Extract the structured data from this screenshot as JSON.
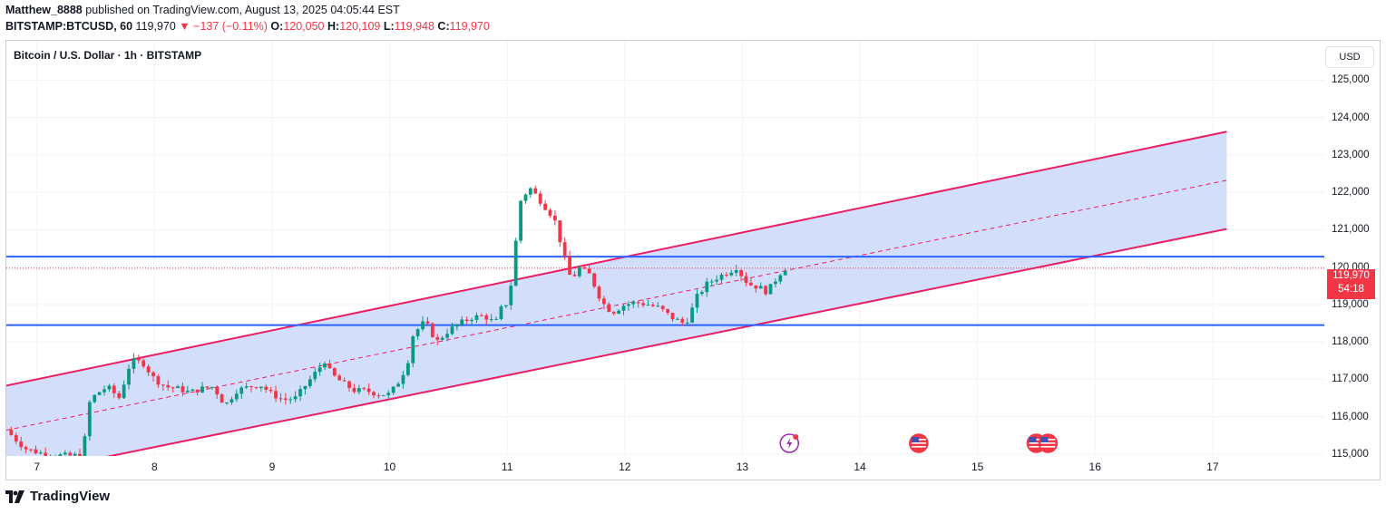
{
  "header": {
    "author": "Matthew_8888",
    "published_text": " published on TradingView.com, August 13, 2025 04:05:44 EST",
    "symbol_interval": "BITSTAMP:BTCUSD, 60",
    "last": "119,970",
    "change_arrow": "▼",
    "change": "−137 (−0.11%)",
    "o_label": "O:",
    "o_value": "120,050",
    "h_label": "H:",
    "h_value": "120,109",
    "l_label": "L:",
    "l_value": "119,948",
    "c_label": "C:",
    "c_value": "119,970"
  },
  "chart_header": {
    "title": "Bitcoin / U.S. Dollar · 1h · BITSTAMP"
  },
  "currency_button": "USD",
  "price_tag": {
    "price": "119,970",
    "countdown": "54:18"
  },
  "footer": {
    "brand": "TradingView"
  },
  "colors": {
    "up": "#089981",
    "down": "#f23645",
    "channel": "#e91e63",
    "channel_fill": "#d1dcfb",
    "hline": "#2962ff"
  },
  "events": [
    {
      "icon": "crypto-event-icon",
      "date": 13.4
    },
    {
      "icon": "us-flag-icon",
      "date": 14.5
    },
    {
      "icon": "us-flag-icon",
      "date": 15.5
    },
    {
      "icon": "us-flag-icon",
      "date": 15.6
    }
  ],
  "chart_data": {
    "type": "candlestick",
    "x_tick_labels": [
      "7",
      "8",
      "9",
      "10",
      "11",
      "12",
      "13",
      "14",
      "15",
      "16",
      "17"
    ],
    "y_tick_labels": [
      "115,000",
      "116,000",
      "117,000",
      "118,000",
      "119,000",
      "120,000",
      "121,000",
      "122,000",
      "123,000",
      "124,000",
      "125,000"
    ],
    "y_ticks": [
      115000,
      116000,
      117000,
      118000,
      119000,
      120000,
      121000,
      122000,
      123000,
      124000,
      125000
    ],
    "x_ticks": [
      7,
      8,
      9,
      10,
      11,
      12,
      13,
      14,
      15,
      16,
      17
    ],
    "xlim": [
      6.74,
      17.95
    ],
    "ylim": [
      114950,
      126050
    ],
    "grid": true,
    "last_price": 119970,
    "horizontal_lines": [
      120280,
      118450
    ],
    "channel": {
      "upper": [
        [
          6.74,
          116830
        ],
        [
          17.12,
          123620
        ]
      ],
      "middle": [
        [
          6.74,
          115640
        ],
        [
          17.12,
          122320
        ]
      ],
      "lower": [
        [
          7.55,
          114900
        ],
        [
          17.12,
          121020
        ]
      ]
    },
    "price_anchors": [
      [
        6.74,
        115650
      ],
      [
        6.8,
        115450
      ],
      [
        6.9,
        115150
      ],
      [
        7.0,
        115050
      ],
      [
        7.1,
        114980
      ],
      [
        7.3,
        114950
      ],
      [
        7.4,
        115000
      ],
      [
        7.42,
        116250
      ],
      [
        7.5,
        116600
      ],
      [
        7.6,
        116800
      ],
      [
        7.7,
        116500
      ],
      [
        7.8,
        117500
      ],
      [
        7.9,
        117450
      ],
      [
        8.0,
        117000
      ],
      [
        8.1,
        116800
      ],
      [
        8.2,
        116750
      ],
      [
        8.3,
        116650
      ],
      [
        8.4,
        116750
      ],
      [
        8.5,
        116800
      ],
      [
        8.6,
        116300
      ],
      [
        8.7,
        116700
      ],
      [
        8.8,
        116800
      ],
      [
        8.9,
        116850
      ],
      [
        9.0,
        116600
      ],
      [
        9.1,
        116450
      ],
      [
        9.2,
        116500
      ],
      [
        9.3,
        116900
      ],
      [
        9.4,
        117300
      ],
      [
        9.45,
        117500
      ],
      [
        9.5,
        117150
      ],
      [
        9.6,
        116900
      ],
      [
        9.7,
        116700
      ],
      [
        9.8,
        116700
      ],
      [
        9.9,
        116600
      ],
      [
        10.0,
        116600
      ],
      [
        10.08,
        116950
      ],
      [
        10.15,
        117400
      ],
      [
        10.2,
        118200
      ],
      [
        10.3,
        118550
      ],
      [
        10.4,
        118000
      ],
      [
        10.5,
        118300
      ],
      [
        10.6,
        118500
      ],
      [
        10.7,
        118650
      ],
      [
        10.8,
        118700
      ],
      [
        10.9,
        118500
      ],
      [
        10.95,
        118900
      ],
      [
        11.0,
        119050
      ],
      [
        11.05,
        119800
      ],
      [
        11.1,
        121700
      ],
      [
        11.15,
        121950
      ],
      [
        11.2,
        122100
      ],
      [
        11.3,
        121700
      ],
      [
        11.4,
        121300
      ],
      [
        11.5,
        120100
      ],
      [
        11.55,
        119600
      ],
      [
        11.6,
        120000
      ],
      [
        11.7,
        119800
      ],
      [
        11.8,
        119100
      ],
      [
        11.85,
        118900
      ],
      [
        11.9,
        118800
      ],
      [
        12.0,
        119000
      ],
      [
        12.1,
        119050
      ],
      [
        12.2,
        119000
      ],
      [
        12.3,
        118900
      ],
      [
        12.4,
        118650
      ],
      [
        12.5,
        118500
      ],
      [
        12.55,
        118650
      ],
      [
        12.6,
        119150
      ],
      [
        12.7,
        119550
      ],
      [
        12.8,
        119750
      ],
      [
        12.9,
        119900
      ],
      [
        12.95,
        120000
      ],
      [
        13.0,
        119750
      ],
      [
        13.05,
        119550
      ],
      [
        13.1,
        119500
      ],
      [
        13.15,
        119450
      ],
      [
        13.2,
        119350
      ],
      [
        13.25,
        119500
      ],
      [
        13.3,
        119750
      ],
      [
        13.35,
        119950
      ],
      [
        13.4,
        119970
      ]
    ]
  }
}
